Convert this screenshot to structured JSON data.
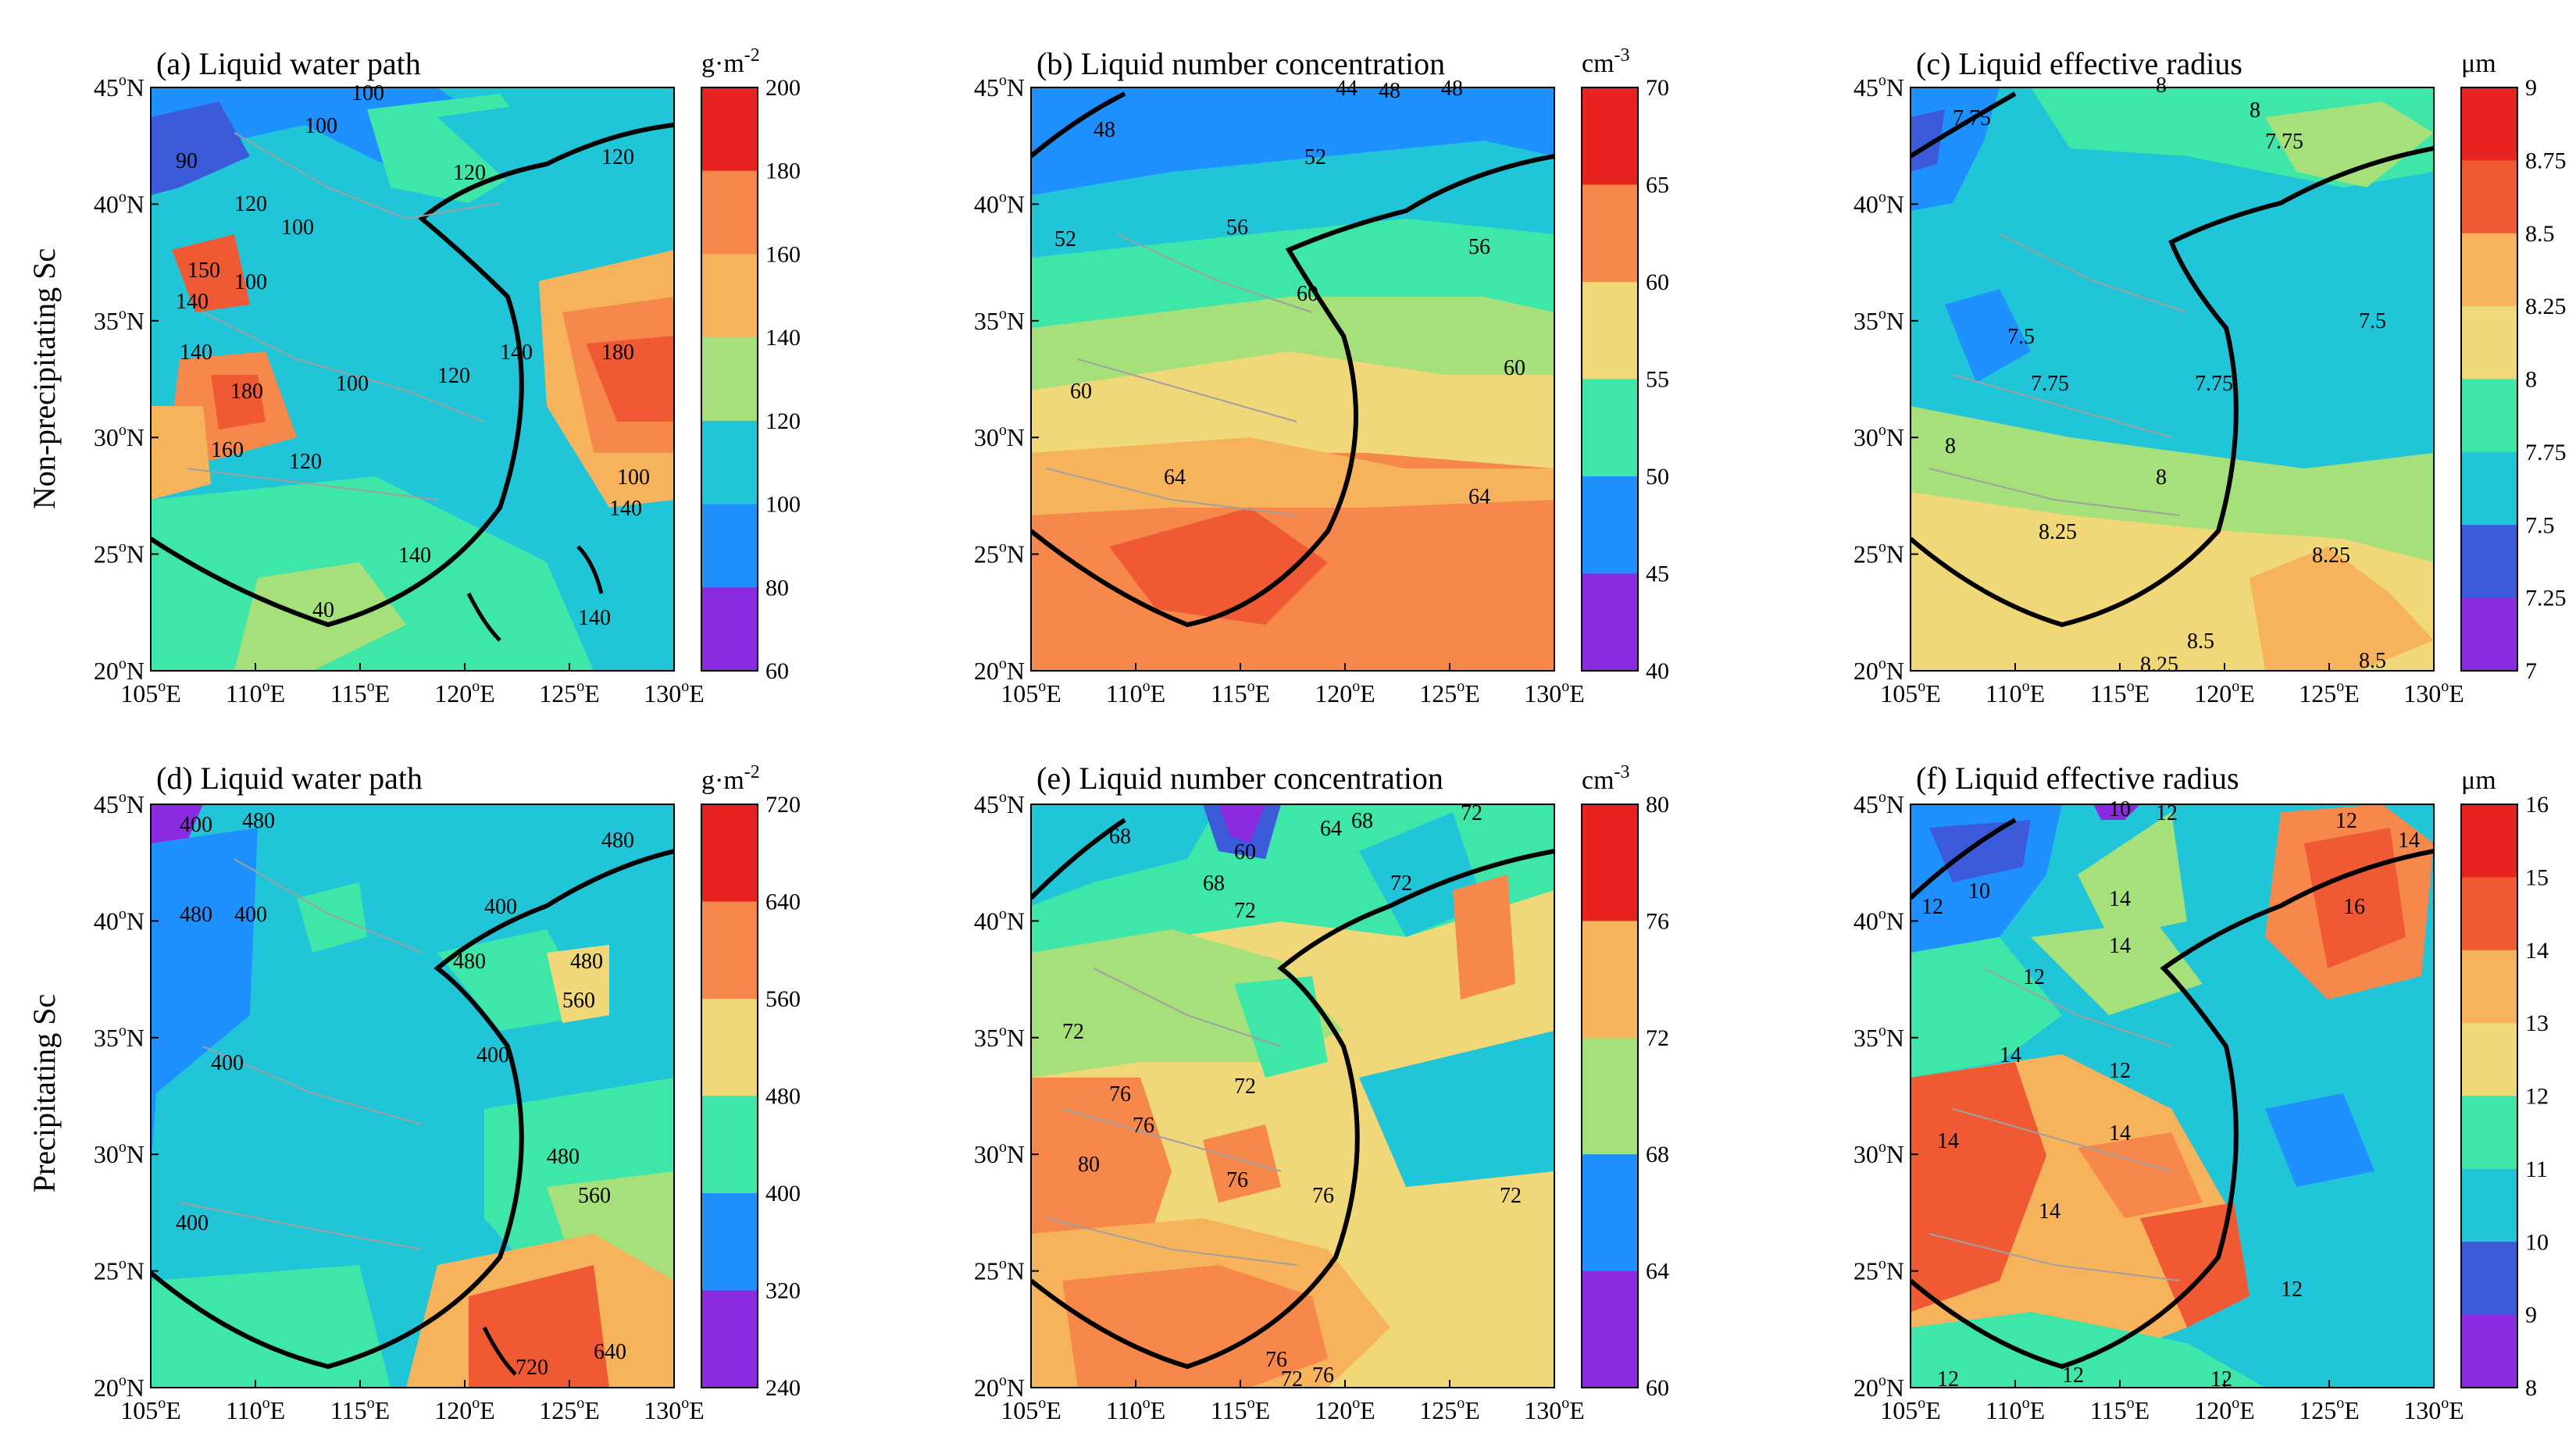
{
  "figure": {
    "row_labels": [
      "Non-precipitating Sc",
      "Precipitating Sc"
    ],
    "lon_ticks": [
      "105",
      "110",
      "115",
      "120",
      "125",
      "130"
    ],
    "lat_ticks": [
      "45",
      "40",
      "35",
      "30",
      "25",
      "20"
    ],
    "lon_suffix": "E",
    "lat_suffix": "N",
    "degree": "o"
  },
  "panels": [
    {
      "id": "a",
      "title": "(a) Liquid water path",
      "unit": "g·m",
      "unit_sup": "-2",
      "cbar_ticks": [
        "200",
        "180",
        "160",
        "140",
        "120",
        "100",
        "80",
        "60"
      ],
      "contour_labels": [
        "100",
        "100",
        "90",
        "120",
        "120",
        "100",
        "120",
        "150",
        "140",
        "100",
        "140",
        "180",
        "160",
        "120",
        "100",
        "120",
        "140",
        "180",
        "100",
        "140",
        "40",
        "140",
        "140"
      ]
    },
    {
      "id": "b",
      "title": "(b) Liquid number concentration",
      "unit": "cm",
      "unit_sup": "-3",
      "cbar_ticks": [
        "70",
        "65",
        "60",
        "55",
        "50",
        "45",
        "40"
      ],
      "contour_labels": [
        "44",
        "48",
        "48",
        "48",
        "52",
        "52",
        "56",
        "56",
        "60",
        "60",
        "60",
        "64",
        "64"
      ]
    },
    {
      "id": "c",
      "title": "(c) Liquid effective radius",
      "unit": "μm",
      "unit_sup": "",
      "cbar_ticks": [
        "9",
        "8.75",
        "8.5",
        "8.25",
        "8",
        "7.75",
        "7.5",
        "7.25",
        "7"
      ],
      "contour_labels": [
        "8",
        "7.75",
        "7.75",
        "8",
        "7.5",
        "7.75",
        "7.75",
        "7.5",
        "8",
        "8",
        "8.25",
        "8.25",
        "8.5",
        "8.25",
        "8.5"
      ]
    },
    {
      "id": "d",
      "title": "(d) Liquid water path",
      "unit": "g·m",
      "unit_sup": "-2",
      "cbar_ticks": [
        "720",
        "640",
        "560",
        "480",
        "400",
        "320",
        "240"
      ],
      "contour_labels": [
        "400",
        "480",
        "480",
        "480",
        "400",
        "400",
        "480",
        "480",
        "560",
        "400",
        "400",
        "480",
        "560",
        "400",
        "720",
        "640"
      ]
    },
    {
      "id": "e",
      "title": "(e) Liquid number concentration",
      "unit": "cm",
      "unit_sup": "-3",
      "cbar_ticks": [
        "80",
        "76",
        "72",
        "68",
        "64",
        "60"
      ],
      "contour_labels": [
        "68",
        "60",
        "64",
        "68",
        "72",
        "72",
        "68",
        "72",
        "72",
        "76",
        "76",
        "80",
        "72",
        "72",
        "76",
        "76",
        "76",
        "72",
        "76"
      ]
    },
    {
      "id": "f",
      "title": "(f) Liquid effective radius",
      "unit": "μm",
      "unit_sup": "",
      "cbar_ticks": [
        "16",
        "15",
        "14",
        "13",
        "12",
        "11",
        "10",
        "9",
        "8"
      ],
      "contour_labels": [
        "10",
        "12",
        "12",
        "14",
        "10",
        "12",
        "12",
        "14",
        "14",
        "16",
        "14",
        "12",
        "14",
        "14",
        "14",
        "12",
        "12",
        "12",
        "12"
      ]
    }
  ],
  "palette": [
    "#8a2be2",
    "#3b5bdb",
    "#1e90ff",
    "#20c5d8",
    "#3ee6a8",
    "#a6e07a",
    "#f0d778",
    "#f7b35c",
    "#f5884a",
    "#ef5a35",
    "#e8231f"
  ]
}
